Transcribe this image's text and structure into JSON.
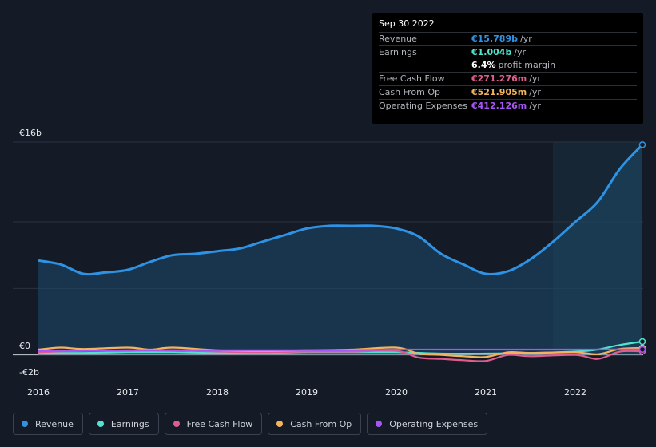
{
  "tooltip": {
    "date": "Sep 30 2022",
    "rows": [
      {
        "label": "Revenue",
        "value": "€15.789b",
        "unit": "/yr",
        "color": "#2e93e5"
      },
      {
        "label": "Earnings",
        "value": "€1.004b",
        "unit": "/yr",
        "color": "#4fe3d0"
      },
      {
        "label": "",
        "value": "6.4%",
        "unit": "profit margin",
        "color": "#ffffff"
      },
      {
        "label": "Free Cash Flow",
        "value": "€271.276m",
        "unit": "/yr",
        "color": "#e05c8f"
      },
      {
        "label": "Cash From Op",
        "value": "€521.905m",
        "unit": "/yr",
        "color": "#f2b45c"
      },
      {
        "label": "Operating Expenses",
        "value": "€412.126m",
        "unit": "/yr",
        "color": "#a855f7"
      }
    ]
  },
  "chart_data": {
    "type": "area",
    "y_ticks": [
      "€16b",
      "€0",
      "-€2b"
    ],
    "x_ticks": [
      "2016",
      "2017",
      "2018",
      "2019",
      "2020",
      "2021",
      "2022"
    ],
    "ylim": [
      -2,
      16
    ],
    "xlim": [
      2016.0,
      2022.75
    ],
    "highlight_start": 2021.75,
    "grid": true,
    "legend_position": "bottom-left",
    "series": [
      {
        "name": "Revenue",
        "color": "#2e93e5",
        "x": [
          2016.0,
          2016.25,
          2016.5,
          2016.75,
          2017.0,
          2017.25,
          2017.5,
          2017.75,
          2018.0,
          2018.25,
          2018.5,
          2018.75,
          2019.0,
          2019.25,
          2019.5,
          2019.75,
          2020.0,
          2020.25,
          2020.5,
          2020.75,
          2021.0,
          2021.25,
          2021.5,
          2021.75,
          2022.0,
          2022.25,
          2022.5,
          2022.75
        ],
        "values": [
          7.1,
          6.8,
          6.1,
          6.2,
          6.4,
          7.0,
          7.5,
          7.6,
          7.8,
          8.0,
          8.5,
          9.0,
          9.5,
          9.7,
          9.7,
          9.7,
          9.5,
          8.9,
          7.6,
          6.8,
          6.1,
          6.3,
          7.2,
          8.5,
          10.0,
          11.5,
          14.0,
          15.8
        ]
      },
      {
        "name": "Earnings",
        "color": "#4fe3d0",
        "x": [
          2016.0,
          2016.5,
          2017.0,
          2017.5,
          2018.0,
          2018.5,
          2019.0,
          2019.5,
          2020.0,
          2020.5,
          2021.0,
          2021.5,
          2022.0,
          2022.25,
          2022.5,
          2022.75
        ],
        "values": [
          0.15,
          0.15,
          0.2,
          0.2,
          0.15,
          0.15,
          0.2,
          0.2,
          0.2,
          0.1,
          0.1,
          0.15,
          0.25,
          0.4,
          0.75,
          1.0
        ]
      },
      {
        "name": "Free Cash Flow",
        "color": "#e05c8f",
        "x": [
          2016.0,
          2016.5,
          2017.0,
          2017.5,
          2018.0,
          2018.5,
          2019.0,
          2019.5,
          2020.0,
          2020.25,
          2020.5,
          2020.75,
          2021.0,
          2021.25,
          2021.5,
          2022.0,
          2022.25,
          2022.5,
          2022.75
        ],
        "values": [
          0.2,
          0.3,
          0.3,
          0.35,
          0.25,
          0.2,
          0.25,
          0.25,
          0.3,
          -0.2,
          -0.3,
          -0.4,
          -0.45,
          0.0,
          -0.1,
          0.0,
          -0.3,
          0.25,
          0.27
        ]
      },
      {
        "name": "Cash From Op",
        "color": "#f2b45c",
        "x": [
          2016.0,
          2016.25,
          2016.5,
          2017.0,
          2017.25,
          2017.5,
          2018.0,
          2018.5,
          2019.0,
          2019.5,
          2020.0,
          2020.25,
          2020.5,
          2020.75,
          2021.0,
          2021.25,
          2021.5,
          2022.0,
          2022.25,
          2022.5,
          2022.75
        ],
        "values": [
          0.4,
          0.55,
          0.45,
          0.55,
          0.4,
          0.55,
          0.35,
          0.3,
          0.35,
          0.4,
          0.55,
          0.1,
          0.0,
          -0.1,
          -0.15,
          0.2,
          0.15,
          0.2,
          0.05,
          0.45,
          0.52
        ]
      },
      {
        "name": "Operating Expenses",
        "color": "#a855f7",
        "x": [
          2016.0,
          2016.5,
          2017.0,
          2017.5,
          2018.0,
          2018.5,
          2019.0,
          2019.5,
          2020.0,
          2020.5,
          2021.0,
          2021.5,
          2022.0,
          2022.5,
          2022.75
        ],
        "values": [
          0.3,
          0.3,
          0.35,
          0.35,
          0.35,
          0.35,
          0.35,
          0.35,
          0.4,
          0.4,
          0.4,
          0.4,
          0.4,
          0.41,
          0.41
        ]
      }
    ]
  },
  "legend": [
    {
      "label": "Revenue",
      "color": "#2e93e5"
    },
    {
      "label": "Earnings",
      "color": "#4fe3d0"
    },
    {
      "label": "Free Cash Flow",
      "color": "#e05c8f"
    },
    {
      "label": "Cash From Op",
      "color": "#f2b45c"
    },
    {
      "label": "Operating Expenses",
      "color": "#a855f7"
    }
  ]
}
